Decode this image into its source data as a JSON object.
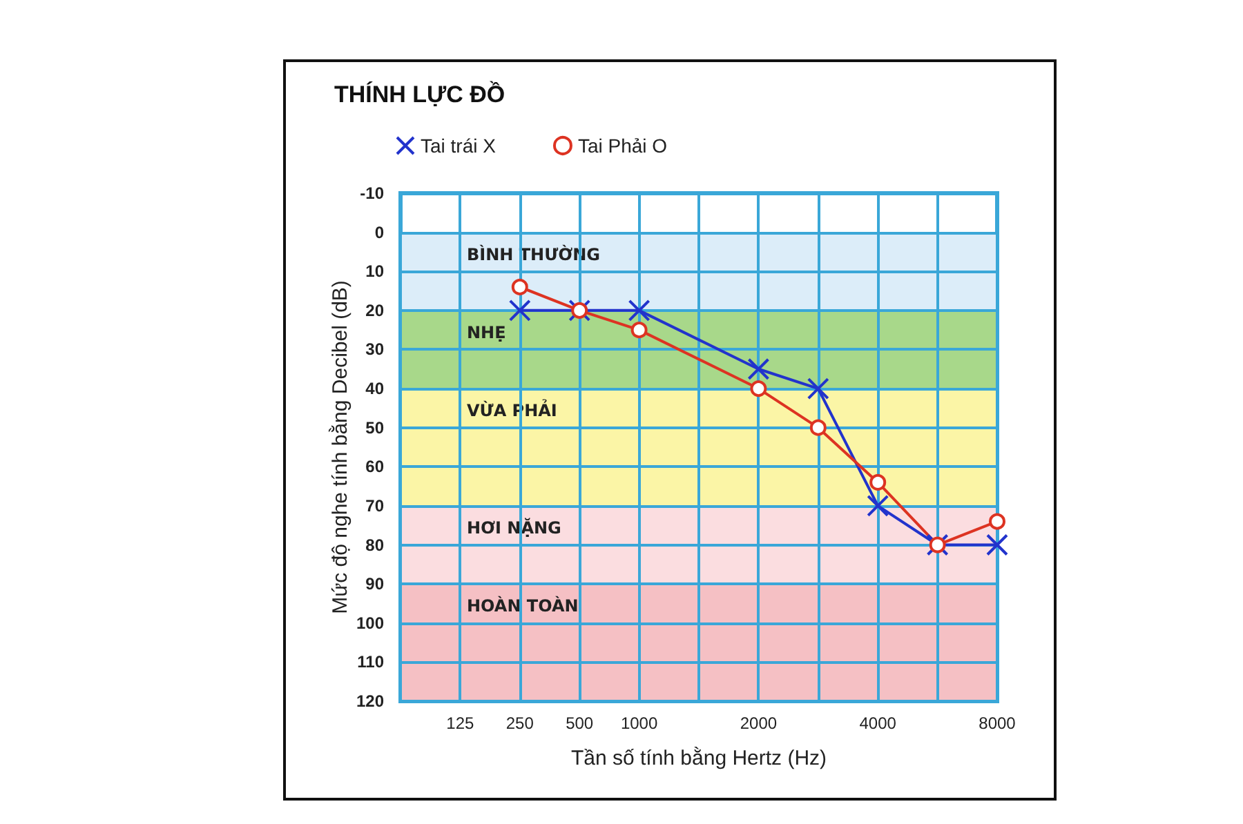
{
  "chart_data": {
    "type": "line",
    "title": "THÍNH LỰC ĐỒ",
    "xlabel": "Tần số tính bằng Hertz (Hz)",
    "ylabel": "Mức độ nghe tính bằng Decibel (dB)",
    "categories": [
      null,
      "125",
      "250",
      "500",
      "1000",
      null,
      "2000",
      null,
      "4000",
      null,
      "8000"
    ],
    "series": [
      {
        "name": "Tai trái X",
        "color": "#2233cc",
        "marker": "cross",
        "values": [
          null,
          null,
          20,
          20,
          20,
          null,
          35,
          40,
          70,
          80,
          80
        ]
      },
      {
        "name": "Tai Phải O",
        "color": "#dd3322",
        "marker": "circle",
        "values": [
          null,
          null,
          14,
          20,
          25,
          null,
          40,
          50,
          64,
          80,
          74
        ]
      }
    ],
    "ylim": [
      120,
      -10
    ],
    "yticks": [
      -10,
      0,
      10,
      20,
      30,
      40,
      50,
      60,
      70,
      80,
      90,
      100,
      110,
      120
    ],
    "bands": [
      {
        "axis": "y",
        "from": 0,
        "to": 20,
        "label": "BÌNH THƯỜNG",
        "color": "#dcedf9"
      },
      {
        "axis": "y",
        "from": 20,
        "to": 40,
        "label": "NHẸ",
        "color": "#a8d88a"
      },
      {
        "axis": "y",
        "from": 40,
        "to": 70,
        "label": "VỪA PHẢI",
        "color": "#fbf5a6"
      },
      {
        "axis": "y",
        "from": 70,
        "to": 90,
        "label": "HƠI NẶNG",
        "color": "#fbdde0"
      },
      {
        "axis": "y",
        "from": 90,
        "to": 120,
        "label": "HOÀN TOÀN",
        "color": "#f5c0c4"
      }
    ],
    "grid": true,
    "legend": "top left",
    "line_style": "solid"
  }
}
